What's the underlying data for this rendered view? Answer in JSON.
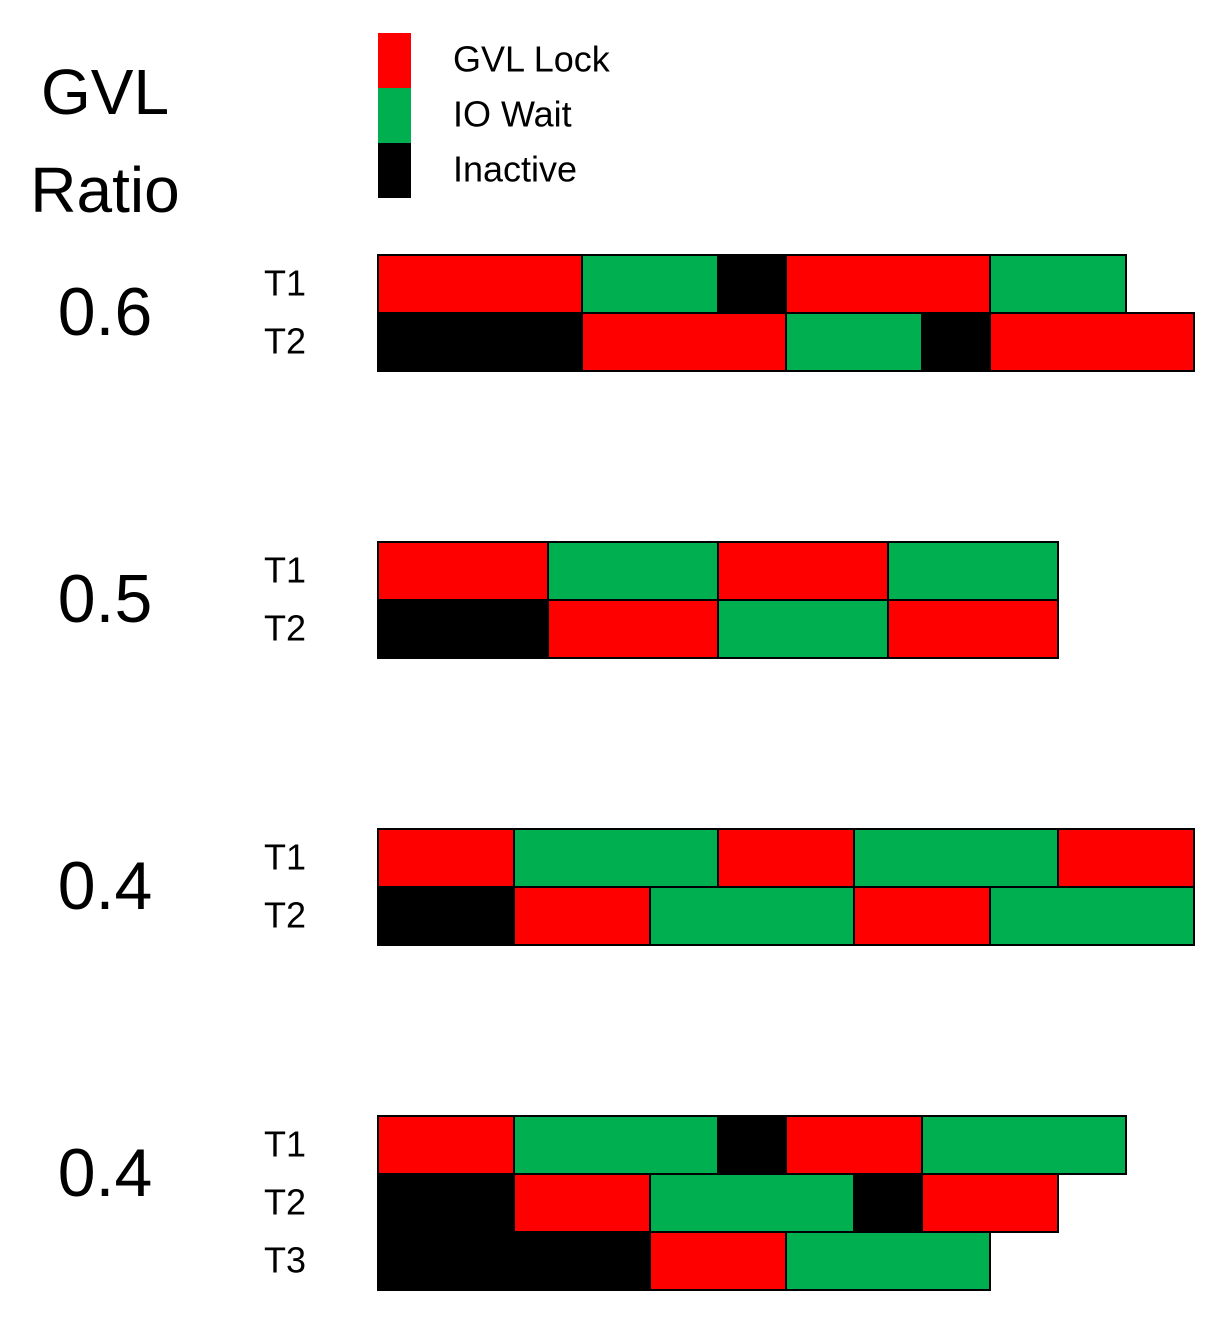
{
  "header": {
    "title_lines": [
      "GVL",
      "Ratio"
    ]
  },
  "legend": [
    {
      "label": "GVL Lock",
      "color": "#ff0000"
    },
    {
      "label": "IO Wait",
      "color": "#00b050"
    },
    {
      "label": "Inactive",
      "color": "#000000"
    }
  ],
  "groups": [
    {
      "ratio": "0.6",
      "threads": [
        {
          "label": "T1",
          "segments": [
            [
              0,
              3
            ],
            [
              1,
              2
            ],
            [
              2,
              1
            ],
            [
              0,
              3
            ],
            [
              1,
              2
            ]
          ]
        },
        {
          "label": "T2",
          "segments": [
            [
              2,
              3
            ],
            [
              0,
              3
            ],
            [
              1,
              2
            ],
            [
              2,
              1
            ],
            [
              0,
              3
            ]
          ]
        }
      ]
    },
    {
      "ratio": "0.5",
      "threads": [
        {
          "label": "T1",
          "segments": [
            [
              0,
              2.5
            ],
            [
              1,
              2.5
            ],
            [
              0,
              2.5
            ],
            [
              1,
              2.5
            ]
          ]
        },
        {
          "label": "T2",
          "segments": [
            [
              2,
              2.5
            ],
            [
              0,
              2.5
            ],
            [
              1,
              2.5
            ],
            [
              0,
              2.5
            ]
          ]
        }
      ]
    },
    {
      "ratio": "0.4",
      "threads": [
        {
          "label": "T1",
          "segments": [
            [
              0,
              2
            ],
            [
              1,
              3
            ],
            [
              0,
              2
            ],
            [
              1,
              3
            ],
            [
              0,
              2
            ]
          ]
        },
        {
          "label": "T2",
          "segments": [
            [
              2,
              2
            ],
            [
              0,
              2
            ],
            [
              1,
              3
            ],
            [
              0,
              2
            ],
            [
              1,
              3
            ]
          ]
        }
      ]
    },
    {
      "ratio": "0.4",
      "threads": [
        {
          "label": "T1",
          "segments": [
            [
              0,
              2
            ],
            [
              1,
              3
            ],
            [
              2,
              1
            ],
            [
              0,
              2
            ],
            [
              1,
              3
            ]
          ]
        },
        {
          "label": "T2",
          "segments": [
            [
              2,
              2
            ],
            [
              0,
              2
            ],
            [
              1,
              3
            ],
            [
              2,
              1
            ],
            [
              0,
              2
            ]
          ]
        },
        {
          "label": "T3",
          "segments": [
            [
              2,
              4
            ],
            [
              0,
              2
            ],
            [
              1,
              3
            ]
          ]
        }
      ]
    }
  ]
}
